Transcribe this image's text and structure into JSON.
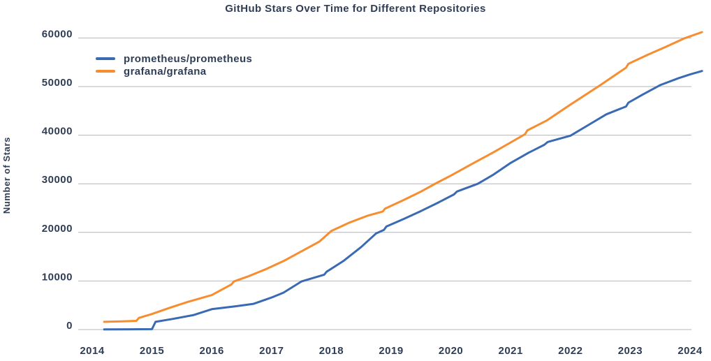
{
  "colors": {
    "background": "#ffffff",
    "text": "#2f3d55",
    "grid": "#b4b6ba",
    "prometheus_line": "#3a6ab3",
    "grafana_line": "#f78d2f"
  },
  "chart_data": {
    "type": "line",
    "title": "GitHub Stars Over Time for Different Repositories",
    "xlabel": "",
    "ylabel": "Number of Stars",
    "xlim": [
      2014,
      2024.25
    ],
    "ylim": [
      0,
      60000
    ],
    "x_ticks": [
      2014,
      2015,
      2016,
      2017,
      2018,
      2019,
      2020,
      2021,
      2022,
      2023,
      2024
    ],
    "y_ticks": [
      0,
      10000,
      20000,
      30000,
      40000,
      50000,
      60000
    ],
    "grid": "horizontal",
    "legend_position": "upper-left-inside",
    "series": [
      {
        "name": "prometheus/prometheus",
        "color": "#3a6ab3",
        "points": [
          [
            2014.2,
            30
          ],
          [
            2014.6,
            60
          ],
          [
            2015.0,
            90
          ],
          [
            2015.06,
            1600
          ],
          [
            2015.35,
            2200
          ],
          [
            2015.7,
            3000
          ],
          [
            2016.0,
            4200
          ],
          [
            2016.4,
            4800
          ],
          [
            2016.7,
            5300
          ],
          [
            2017.0,
            6600
          ],
          [
            2017.2,
            7600
          ],
          [
            2017.5,
            9900
          ],
          [
            2017.88,
            11300
          ],
          [
            2017.92,
            11900
          ],
          [
            2018.2,
            14100
          ],
          [
            2018.5,
            17000
          ],
          [
            2018.75,
            19800
          ],
          [
            2018.88,
            20500
          ],
          [
            2018.92,
            21200
          ],
          [
            2019.2,
            22700
          ],
          [
            2019.5,
            24400
          ],
          [
            2019.8,
            26200
          ],
          [
            2020.05,
            27800
          ],
          [
            2020.1,
            28400
          ],
          [
            2020.45,
            30000
          ],
          [
            2020.7,
            31800
          ],
          [
            2021.0,
            34300
          ],
          [
            2021.3,
            36400
          ],
          [
            2021.56,
            38000
          ],
          [
            2021.62,
            38600
          ],
          [
            2022.0,
            39900
          ],
          [
            2022.3,
            42100
          ],
          [
            2022.6,
            44300
          ],
          [
            2022.93,
            45900
          ],
          [
            2022.97,
            46700
          ],
          [
            2023.2,
            48300
          ],
          [
            2023.5,
            50300
          ],
          [
            2023.8,
            51700
          ],
          [
            2024.0,
            52500
          ],
          [
            2024.2,
            53200
          ]
        ]
      },
      {
        "name": "grafana/grafana",
        "color": "#f78d2f",
        "points": [
          [
            2014.2,
            1600
          ],
          [
            2014.5,
            1700
          ],
          [
            2014.74,
            1800
          ],
          [
            2014.78,
            2400
          ],
          [
            2015.0,
            3200
          ],
          [
            2015.3,
            4500
          ],
          [
            2015.6,
            5700
          ],
          [
            2016.0,
            7100
          ],
          [
            2016.33,
            9300
          ],
          [
            2016.37,
            9900
          ],
          [
            2016.6,
            10900
          ],
          [
            2016.9,
            12400
          ],
          [
            2017.2,
            14100
          ],
          [
            2017.5,
            16100
          ],
          [
            2017.8,
            18100
          ],
          [
            2018.0,
            20300
          ],
          [
            2018.3,
            22000
          ],
          [
            2018.6,
            23400
          ],
          [
            2018.86,
            24300
          ],
          [
            2018.9,
            24900
          ],
          [
            2019.2,
            26600
          ],
          [
            2019.5,
            28400
          ],
          [
            2019.75,
            30100
          ],
          [
            2020.0,
            31700
          ],
          [
            2020.4,
            34400
          ],
          [
            2020.7,
            36400
          ],
          [
            2021.0,
            38500
          ],
          [
            2021.24,
            40200
          ],
          [
            2021.28,
            41000
          ],
          [
            2021.6,
            43000
          ],
          [
            2022.0,
            46300
          ],
          [
            2022.5,
            50300
          ],
          [
            2022.93,
            53900
          ],
          [
            2022.97,
            54700
          ],
          [
            2023.3,
            56600
          ],
          [
            2023.6,
            58200
          ],
          [
            2023.9,
            59900
          ],
          [
            2024.2,
            61200
          ]
        ]
      }
    ]
  }
}
